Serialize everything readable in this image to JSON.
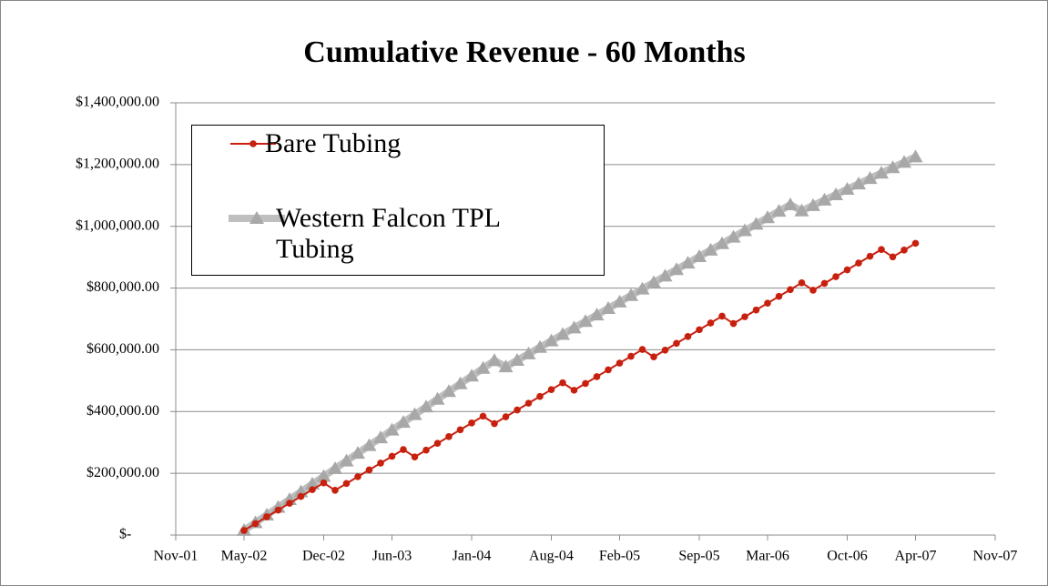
{
  "chart_data": {
    "type": "line",
    "title": "Cumulative Revenue - 60 Months",
    "x": [
      "2002-05",
      "2002-06",
      "2002-07",
      "2002-08",
      "2002-09",
      "2002-10",
      "2002-11",
      "2002-12",
      "2003-01",
      "2003-02",
      "2003-03",
      "2003-04",
      "2003-05",
      "2003-06",
      "2003-07",
      "2003-08",
      "2003-09",
      "2003-10",
      "2003-11",
      "2003-12",
      "2004-01",
      "2004-02",
      "2004-03",
      "2004-04",
      "2004-05",
      "2004-06",
      "2004-07",
      "2004-08",
      "2004-09",
      "2004-10",
      "2004-11",
      "2004-12",
      "2005-01",
      "2005-02",
      "2005-03",
      "2005-04",
      "2005-05",
      "2005-06",
      "2005-07",
      "2005-08",
      "2005-09",
      "2005-10",
      "2005-11",
      "2005-12",
      "2006-01",
      "2006-02",
      "2006-03",
      "2006-04",
      "2006-05",
      "2006-06",
      "2006-07",
      "2006-08",
      "2006-09",
      "2006-10",
      "2006-11",
      "2006-12",
      "2007-01",
      "2007-02",
      "2007-03",
      "2007-04"
    ],
    "series": [
      {
        "name": "Bare Tubing",
        "color": "#c8200e",
        "marker": "circle",
        "values": [
          15000,
          37000,
          59000,
          81000,
          103000,
          125000,
          147000,
          169000,
          145000,
          167000,
          189000,
          211000,
          233000,
          255000,
          277000,
          253000,
          275000,
          297000,
          319000,
          341000,
          363000,
          385000,
          361000,
          383000,
          405000,
          427000,
          449000,
          471000,
          493000,
          469000,
          491000,
          513000,
          535000,
          557000,
          579000,
          601000,
          577000,
          599000,
          621000,
          643000,
          665000,
          687000,
          709000,
          685000,
          707000,
          729000,
          751000,
          773000,
          795000,
          817000,
          793000,
          815000,
          837000,
          859000,
          881000,
          903000,
          925000,
          901000,
          923000,
          945000
        ]
      },
      {
        "name": "Western Falcon TPL Tubing",
        "color": "#bfbfbf",
        "marker": "triangle",
        "values": [
          15000,
          40000,
          65000,
          90000,
          115000,
          140000,
          165000,
          190000,
          215000,
          240000,
          265000,
          290000,
          315000,
          340000,
          365000,
          390000,
          415000,
          440000,
          465000,
          490000,
          515000,
          540000,
          565000,
          545000,
          566000,
          587000,
          608000,
          629000,
          650000,
          671000,
          692000,
          713000,
          734000,
          755000,
          776000,
          797000,
          818000,
          839000,
          860000,
          881000,
          902000,
          923000,
          944000,
          965000,
          986000,
          1007000,
          1028000,
          1049000,
          1070000,
          1050000,
          1067500,
          1085000,
          1102500,
          1120000,
          1137500,
          1155000,
          1172500,
          1190000,
          1207500,
          1225000
        ]
      }
    ],
    "xlim": [
      "2001-11",
      "2007-11"
    ],
    "xticks": [
      {
        "value": "2001-11",
        "label": "Nov-01"
      },
      {
        "value": "2002-05",
        "label": "May-02"
      },
      {
        "value": "2002-12",
        "label": "Dec-02"
      },
      {
        "value": "2003-06",
        "label": "Jun-03"
      },
      {
        "value": "2004-01",
        "label": "Jan-04"
      },
      {
        "value": "2004-08",
        "label": "Aug-04"
      },
      {
        "value": "2005-02",
        "label": "Feb-05"
      },
      {
        "value": "2005-09",
        "label": "Sep-05"
      },
      {
        "value": "2006-03",
        "label": "Mar-06"
      },
      {
        "value": "2006-10",
        "label": "Oct-06"
      },
      {
        "value": "2007-04",
        "label": "Apr-07"
      },
      {
        "value": "2007-11",
        "label": "Nov-07"
      }
    ],
    "ylim": [
      0,
      1400000
    ],
    "yticks": [
      {
        "value": 0,
        "label": "$-"
      },
      {
        "value": 200000,
        "label": "$200,000.00"
      },
      {
        "value": 400000,
        "label": "$400,000.00"
      },
      {
        "value": 600000,
        "label": "$600,000.00"
      },
      {
        "value": 800000,
        "label": "$800,000.00"
      },
      {
        "value": 1000000,
        "label": "$1,000,000.00"
      },
      {
        "value": 1200000,
        "label": "$1,200,000.00"
      },
      {
        "value": 1400000,
        "label": "$1,400,000.00"
      }
    ],
    "grid": true,
    "legend": "top-left"
  }
}
